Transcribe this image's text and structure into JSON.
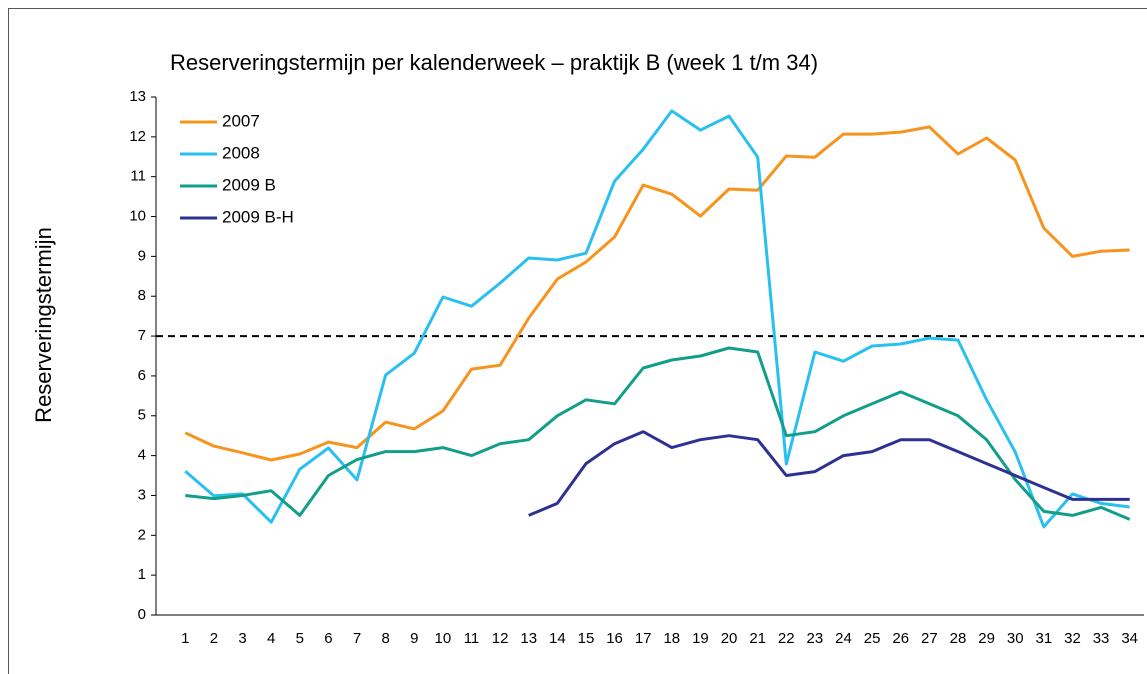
{
  "chart_data": {
    "type": "line",
    "title": "Reserveringstermijn per kalenderweek – praktijk B (week 1 t/m 34)",
    "y_label": "Reserveringstermijn",
    "categories": [
      1,
      2,
      3,
      4,
      5,
      6,
      7,
      8,
      9,
      10,
      11,
      12,
      13,
      14,
      15,
      16,
      17,
      18,
      19,
      20,
      21,
      22,
      23,
      24,
      25,
      26,
      27,
      28,
      29,
      30,
      31,
      32,
      33,
      34
    ],
    "series": [
      {
        "name": "2007",
        "color": "#f7941d",
        "values": [
          4.57,
          4.24,
          4.07,
          3.89,
          4.04,
          4.34,
          4.2,
          4.84,
          4.67,
          5.12,
          6.17,
          6.27,
          7.45,
          8.43,
          8.86,
          9.49,
          10.79,
          10.56,
          10.01,
          10.69,
          10.66,
          11.52,
          11.49,
          12.07,
          12.07,
          12.12,
          12.25,
          11.57,
          11.97,
          11.42,
          9.71,
          9.0,
          9.13,
          9.16
        ]
      },
      {
        "name": "2008",
        "color": "#29c0f0",
        "values": [
          3.61,
          2.99,
          3.04,
          2.33,
          3.66,
          4.19,
          3.39,
          6.02,
          6.57,
          7.98,
          7.75,
          8.33,
          8.96,
          8.91,
          9.08,
          10.89,
          11.69,
          12.65,
          12.17,
          12.52,
          11.49,
          3.79,
          6.6,
          6.37,
          6.75,
          6.8,
          6.95,
          6.9,
          5.4,
          4.09,
          2.21,
          3.04,
          2.8,
          2.71
        ]
      },
      {
        "name": "2009 B",
        "color": "#139e8a",
        "values": [
          3.0,
          2.92,
          3.0,
          3.12,
          2.5,
          3.5,
          3.9,
          4.1,
          4.1,
          4.2,
          4.0,
          4.3,
          4.4,
          5.0,
          5.4,
          5.3,
          6.2,
          6.4,
          6.5,
          6.7,
          6.6,
          4.5,
          4.6,
          5.0,
          5.3,
          5.6,
          5.3,
          5.0,
          4.4,
          3.4,
          2.6,
          2.5,
          2.7,
          2.4
        ]
      },
      {
        "name": "2009 B-H",
        "color": "#2e3192",
        "values": [
          null,
          null,
          null,
          null,
          null,
          null,
          null,
          null,
          null,
          null,
          null,
          null,
          2.5,
          2.8,
          3.8,
          4.3,
          4.6,
          4.2,
          4.4,
          4.5,
          4.4,
          3.5,
          3.6,
          4.0,
          4.1,
          4.4,
          4.4,
          4.1,
          3.8,
          3.5,
          3.2,
          2.9,
          2.9,
          2.9
        ]
      }
    ],
    "hline": 7,
    "ylim": [
      0,
      13
    ],
    "yticks": [
      0,
      1,
      2,
      3,
      4,
      5,
      6,
      7,
      8,
      9,
      10,
      11,
      12,
      13
    ],
    "legend": "upper-left"
  }
}
